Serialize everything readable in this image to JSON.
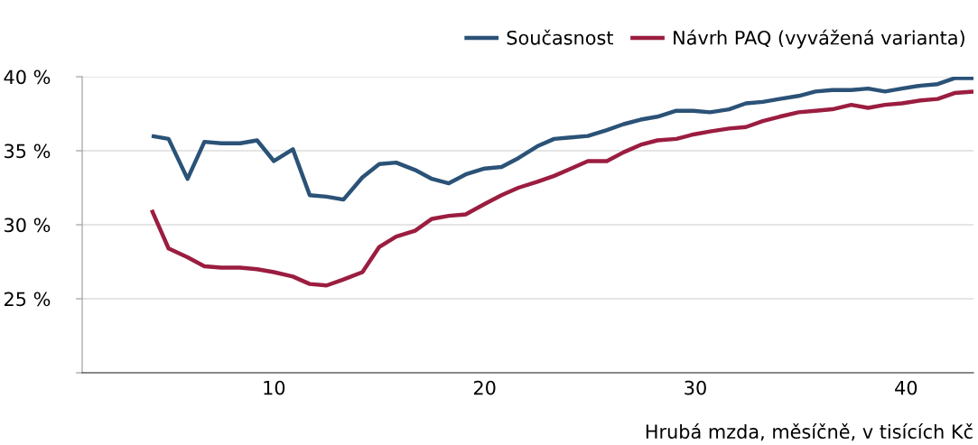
{
  "chart_data": {
    "type": "line",
    "xlabel": "Hrubá mzda, měsíčně, v tisících Kč",
    "x": [
      4.2,
      5.0,
      5.9,
      6.7,
      7.5,
      8.4,
      9.2,
      10.0,
      10.9,
      11.7,
      12.5,
      13.3,
      14.2,
      15.0,
      15.8,
      16.7,
      17.5,
      18.3,
      19.1,
      20.0,
      20.8,
      21.6,
      22.5,
      23.3,
      24.1,
      24.9,
      25.8,
      26.6,
      27.4,
      28.2,
      29.1,
      29.9,
      30.7,
      31.6,
      32.4,
      33.2,
      34.0,
      34.9,
      35.7,
      36.5,
      37.4,
      38.2,
      39.0,
      39.8,
      40.7,
      41.5,
      42.3,
      43.2
    ],
    "series": [
      {
        "name": "Současnost",
        "color": "#2b5277",
        "values": [
          36.0,
          35.8,
          33.1,
          35.6,
          35.5,
          35.5,
          35.7,
          34.3,
          35.1,
          32.0,
          31.9,
          31.7,
          33.2,
          34.1,
          34.2,
          33.7,
          33.1,
          32.8,
          33.4,
          33.8,
          33.9,
          34.5,
          35.3,
          35.8,
          35.9,
          36.0,
          36.4,
          36.8,
          37.1,
          37.3,
          37.7,
          37.7,
          37.6,
          37.8,
          38.2,
          38.3,
          38.5,
          38.7,
          39.0,
          39.1,
          39.1,
          39.2,
          39.0,
          39.2,
          39.4,
          39.5,
          39.9,
          39.9
        ]
      },
      {
        "name": "Návrh PAQ (vyvážená varianta)",
        "color": "#9b1d40",
        "values": [
          31.0,
          28.4,
          27.8,
          27.2,
          27.1,
          27.1,
          27.0,
          26.8,
          26.5,
          26.0,
          25.9,
          26.3,
          26.8,
          28.5,
          29.2,
          29.6,
          30.4,
          30.6,
          30.7,
          31.4,
          32.0,
          32.5,
          32.9,
          33.3,
          33.8,
          34.3,
          34.3,
          34.9,
          35.4,
          35.7,
          35.8,
          36.1,
          36.3,
          36.5,
          36.6,
          37.0,
          37.3,
          37.6,
          37.7,
          37.8,
          38.1,
          37.9,
          38.1,
          38.2,
          38.4,
          38.5,
          38.9,
          39.0
        ]
      }
    ],
    "xlim": [
      0.9,
      43.2
    ],
    "xticks": [
      10,
      20,
      30,
      40
    ],
    "ylim": [
      20,
      40
    ],
    "yticks": [
      {
        "value": 20,
        "label": null
      },
      {
        "value": 25,
        "label": "25 %"
      },
      {
        "value": 30,
        "label": "30 %"
      },
      {
        "value": 35,
        "label": "35 %"
      },
      {
        "value": 40,
        "label": "40 %"
      }
    ],
    "grid": "y",
    "legend": "top right",
    "marker": "none",
    "line_style": "solid"
  }
}
